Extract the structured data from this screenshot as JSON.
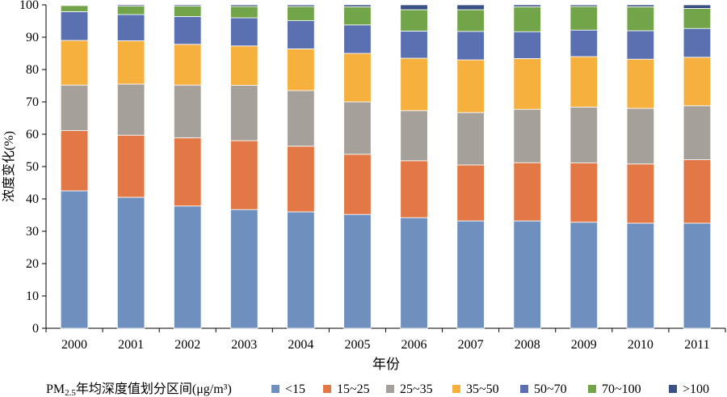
{
  "chart_data": {
    "type": "bar",
    "stacked": true,
    "categories": [
      "2000",
      "2001",
      "2002",
      "2003",
      "2004",
      "2005",
      "2006",
      "2007",
      "2008",
      "2009",
      "2010",
      "2011"
    ],
    "ylim": [
      0,
      100
    ],
    "yticks": [
      0,
      10,
      20,
      30,
      40,
      50,
      60,
      70,
      80,
      90,
      100
    ],
    "ylabel": "浓度变化(%)",
    "xlabel": "年份",
    "legend_title_prefix": "PM",
    "legend_title_sub": "2.5",
    "legend_title_suffix": "年均深度值划分区间(μg/m³)",
    "legend_position": "bottom",
    "series": [
      {
        "name": "<15",
        "color": "#6f8fbe",
        "values": [
          42.5,
          40.5,
          37.8,
          36.7,
          36.0,
          35.2,
          34.2,
          33.2,
          33.2,
          32.8,
          32.5,
          32.5
        ]
      },
      {
        "name": "15~25",
        "color": "#e27845",
        "values": [
          18.6,
          19.2,
          21.1,
          21.3,
          20.3,
          18.6,
          17.6,
          17.3,
          18.0,
          18.3,
          18.3,
          19.6
        ]
      },
      {
        "name": "25~35",
        "color": "#a6a09a",
        "values": [
          14.1,
          15.8,
          16.3,
          17.1,
          17.2,
          16.2,
          15.5,
          16.2,
          16.5,
          17.3,
          17.2,
          16.7
        ]
      },
      {
        "name": "35~50",
        "color": "#f5b03e",
        "values": [
          13.8,
          13.4,
          12.6,
          12.2,
          12.9,
          15.0,
          16.2,
          16.3,
          15.7,
          15.6,
          15.2,
          15.0
        ]
      },
      {
        "name": "50~70",
        "color": "#5b70b0",
        "values": [
          8.9,
          8.1,
          8.6,
          8.7,
          8.7,
          8.8,
          8.4,
          8.8,
          8.3,
          8.2,
          8.8,
          8.9
        ]
      },
      {
        "name": "70~100",
        "color": "#72a449",
        "values": [
          1.9,
          2.6,
          3.2,
          3.5,
          4.4,
          5.6,
          6.6,
          6.7,
          7.7,
          7.3,
          7.4,
          6.2
        ]
      },
      {
        "name": ">100",
        "color": "#3b5186",
        "values": [
          0.2,
          0.4,
          0.4,
          0.5,
          0.5,
          0.6,
          1.5,
          1.5,
          0.6,
          0.5,
          0.6,
          1.1
        ]
      }
    ]
  }
}
